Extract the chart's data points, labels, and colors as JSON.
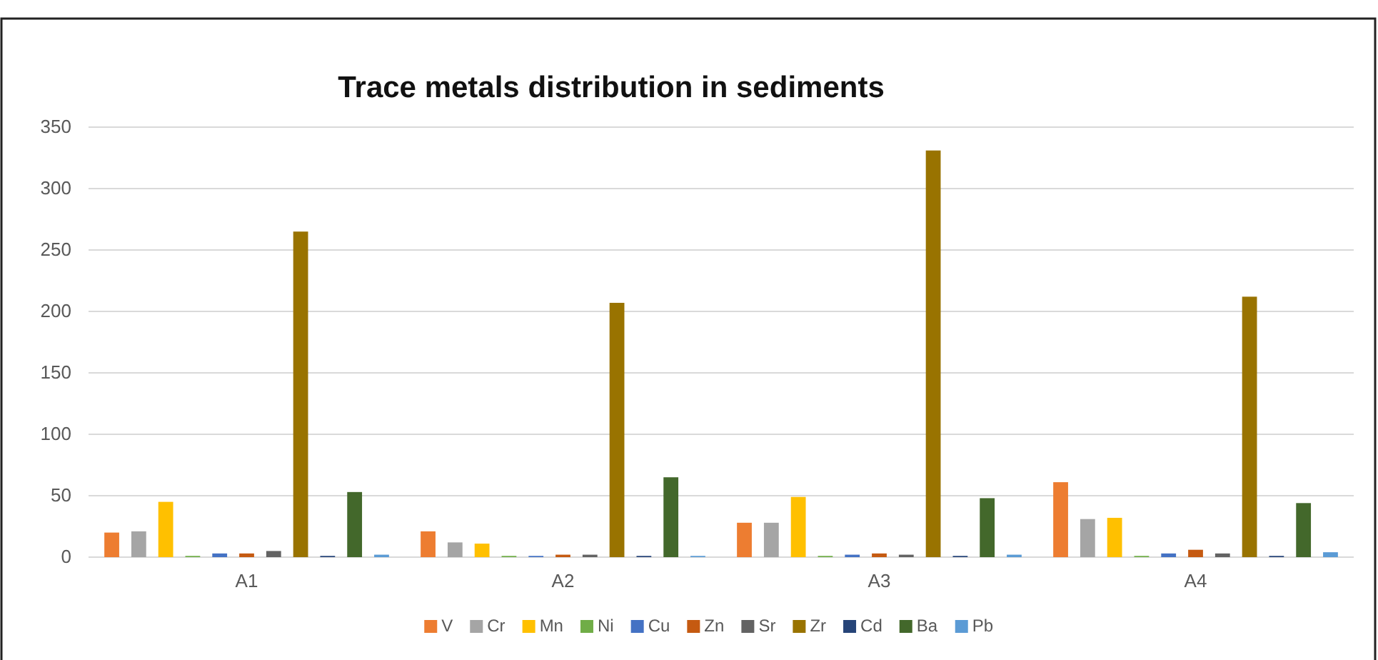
{
  "chart_data": {
    "type": "bar",
    "title": "Trace metals  distribution in sediments",
    "categories": [
      "A1",
      "A2",
      "A3",
      "A4"
    ],
    "series": [
      {
        "name": "V",
        "color": "#ed7d31",
        "values": [
          20,
          21,
          28,
          61
        ]
      },
      {
        "name": "Cr",
        "color": "#a5a5a5",
        "values": [
          21,
          12,
          28,
          31
        ]
      },
      {
        "name": "Mn",
        "color": "#ffc000",
        "values": [
          45,
          11,
          49,
          32
        ]
      },
      {
        "name": "Ni",
        "color": "#70ad47",
        "values": [
          1,
          1,
          1,
          1
        ]
      },
      {
        "name": "Cu",
        "color": "#4472c4",
        "values": [
          3,
          1,
          2,
          3
        ]
      },
      {
        "name": "Zn",
        "color": "#c55a11",
        "values": [
          3,
          2,
          3,
          6
        ]
      },
      {
        "name": "Sr",
        "color": "#636363",
        "values": [
          5,
          2,
          2,
          3
        ]
      },
      {
        "name": "Zr",
        "color": "#997300",
        "values": [
          265,
          207,
          331,
          212
        ]
      },
      {
        "name": "Cd",
        "color": "#264478",
        "values": [
          1,
          1,
          1,
          1
        ]
      },
      {
        "name": "Ba",
        "color": "#43682b",
        "values": [
          53,
          65,
          48,
          44
        ]
      },
      {
        "name": "Pb",
        "color": "#5b9bd5",
        "values": [
          2,
          1,
          2,
          4
        ]
      }
    ],
    "ylim": [
      0,
      350
    ],
    "yticks": [
      0,
      50,
      100,
      150,
      200,
      250,
      300,
      350
    ],
    "grid": "y",
    "legend": "bottom"
  }
}
